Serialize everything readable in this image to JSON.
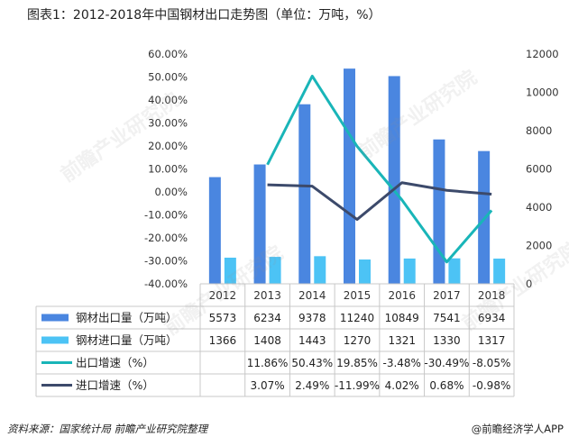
{
  "title": "图表1：2012-2018年中国钢材出口走势图（单位：万吨，%）",
  "source": "资料来源：国家统计局 前瞻产业研究院整理",
  "brand": "@前瞻经济学人APP",
  "watermark": "前瞻产业研究院",
  "chart_data": {
    "type": "bar",
    "categories": [
      "2012",
      "2013",
      "2014",
      "2015",
      "2016",
      "2017",
      "2018"
    ],
    "left_axis": {
      "min": -40,
      "max": 60,
      "step": 10,
      "ticks": [
        "-40.00%",
        "-30.00%",
        "-20.00%",
        "-10.00%",
        "0.00%",
        "10.00%",
        "20.00%",
        "30.00%",
        "40.00%",
        "50.00%",
        "60.00%"
      ]
    },
    "right_axis": {
      "min": 0,
      "max": 12000,
      "step": 2000,
      "ticks": [
        "0",
        "2000",
        "4000",
        "6000",
        "8000",
        "10000",
        "12000"
      ]
    },
    "grid": false,
    "legend": "table-left",
    "series": [
      {
        "name": "钢材出口量（万吨）",
        "type": "bar",
        "axis": "right",
        "color": "#4a86e0",
        "values": [
          5573,
          6234,
          9378,
          11240,
          10849,
          7541,
          6934
        ],
        "labels": [
          "5573",
          "6234",
          "9378",
          "11240",
          "10849",
          "7541",
          "6934"
        ]
      },
      {
        "name": "钢材进口量（万吨）",
        "type": "bar",
        "axis": "right",
        "color": "#4cc3f5",
        "values": [
          1366,
          1408,
          1443,
          1270,
          1321,
          1330,
          1317
        ],
        "labels": [
          "1366",
          "1408",
          "1443",
          "1270",
          "1321",
          "1330",
          "1317"
        ]
      },
      {
        "name": "出口增速（%）",
        "type": "line",
        "axis": "left",
        "color": "#19b5b8",
        "values": [
          null,
          11.86,
          50.43,
          19.85,
          -3.48,
          -30.49,
          -8.05
        ],
        "labels": [
          "",
          "11.86%",
          "50.43%",
          "19.85%",
          "-3.48%",
          "-30.49%",
          "-8.05%"
        ]
      },
      {
        "name": "进口增速（%）",
        "type": "line",
        "axis": "left",
        "color": "#3c4a6b",
        "values": [
          null,
          3.07,
          2.49,
          -11.99,
          4.02,
          0.68,
          -0.98
        ],
        "labels": [
          "",
          "3.07%",
          "2.49%",
          "-11.99%",
          "4.02%",
          "0.68%",
          "-0.98%"
        ]
      }
    ]
  }
}
